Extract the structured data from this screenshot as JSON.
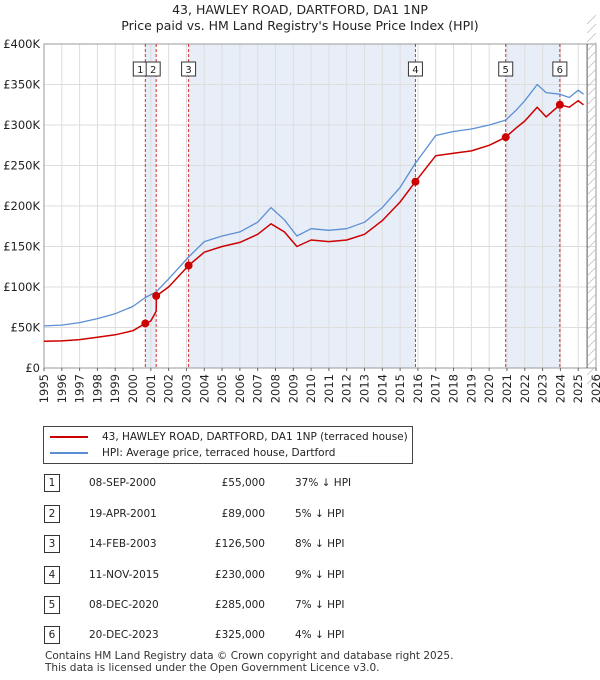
{
  "colors": {
    "property": "#cc0000",
    "hpi": "#5b8fd4",
    "shade": "#e8eef8",
    "grid": "#dddddd"
  },
  "chart_data": {
    "type": "line",
    "title": "43, HAWLEY ROAD, DARTFORD, DA1 1NP",
    "subtitle": "Price paid vs. HM Land Registry's House Price Index (HPI)",
    "xlim": [
      1995,
      2026
    ],
    "ylim": [
      0,
      400000
    ],
    "x_ticks": [
      1995,
      1996,
      1997,
      1998,
      1999,
      2000,
      2001,
      2002,
      2003,
      2004,
      2005,
      2006,
      2007,
      2008,
      2009,
      2010,
      2011,
      2012,
      2013,
      2014,
      2015,
      2016,
      2017,
      2018,
      2019,
      2020,
      2021,
      2022,
      2023,
      2024,
      2025,
      2026
    ],
    "y_ticks": [
      {
        "value": 0,
        "label": "£0"
      },
      {
        "value": 50000,
        "label": "£50K"
      },
      {
        "value": 100000,
        "label": "£100K"
      },
      {
        "value": 150000,
        "label": "£150K"
      },
      {
        "value": 200000,
        "label": "£200K"
      },
      {
        "value": 250000,
        "label": "£250K"
      },
      {
        "value": 300000,
        "label": "£300K"
      },
      {
        "value": 350000,
        "label": "£350K"
      },
      {
        "value": 400000,
        "label": "£400K"
      }
    ],
    "shaded_periods": [
      [
        2000.69,
        2001.3
      ],
      [
        2003.12,
        2015.86
      ],
      [
        2020.93,
        2023.97
      ]
    ],
    "forecast_start": 2025.5,
    "series": [
      {
        "name": "43, HAWLEY ROAD, DARTFORD, DA1 1NP (terraced house)",
        "key": "property",
        "x": [
          1995,
          1996,
          1997,
          1998,
          1999,
          2000,
          2000.69,
          2000.7,
          2001.0,
          2001.3,
          2001.31,
          2002,
          2003.12,
          2004,
          2005,
          2006,
          2007,
          2007.75,
          2008.5,
          2009.2,
          2010,
          2011,
          2012,
          2013,
          2014,
          2015,
          2015.86,
          2016.5,
          2017,
          2018,
          2019,
          2020,
          2020.93,
          2021.5,
          2022,
          2022.7,
          2023.2,
          2023.97,
          2024.5,
          2025,
          2025.3
        ],
        "values": [
          33000,
          33500,
          35000,
          38000,
          41000,
          46000,
          55000,
          55000,
          58000,
          70000,
          89000,
          100000,
          126500,
          143000,
          150000,
          155000,
          165000,
          178000,
          168000,
          150000,
          158000,
          156000,
          158000,
          165000,
          182000,
          205000,
          230000,
          248000,
          262000,
          265000,
          268000,
          275000,
          285000,
          296000,
          305000,
          322000,
          310000,
          325000,
          322000,
          330000,
          325000
        ]
      },
      {
        "name": "HPI: Average price, terraced house, Dartford",
        "key": "hpi",
        "x": [
          1995,
          1996,
          1997,
          1998,
          1999,
          2000,
          2000.69,
          2001.3,
          2002,
          2003.12,
          2004,
          2005,
          2006,
          2007,
          2007.75,
          2008.5,
          2009.2,
          2010,
          2011,
          2012,
          2013,
          2014,
          2015,
          2015.86,
          2016.5,
          2017,
          2018,
          2019,
          2020,
          2020.93,
          2021.5,
          2022,
          2022.7,
          2023.2,
          2023.97,
          2024.5,
          2025,
          2025.3
        ],
        "values": [
          52000,
          53000,
          56000,
          61000,
          67000,
          76000,
          87000,
          94000,
          110000,
          137000,
          156000,
          163000,
          168000,
          180000,
          198000,
          183000,
          163000,
          172000,
          170000,
          172000,
          180000,
          198000,
          223000,
          253000,
          272000,
          287000,
          292000,
          295000,
          300000,
          306000,
          318000,
          330000,
          350000,
          340000,
          338000,
          334000,
          343000,
          338000
        ]
      }
    ],
    "markers": [
      {
        "label": "1",
        "x": 2000.69,
        "y": 55000
      },
      {
        "label": "2",
        "x": 2001.3,
        "y": 89000
      },
      {
        "label": "3",
        "x": 2003.12,
        "y": 126500
      },
      {
        "label": "4",
        "x": 2015.86,
        "y": 230000
      },
      {
        "label": "5",
        "x": 2020.93,
        "y": 285000
      },
      {
        "label": "6",
        "x": 2023.97,
        "y": 325000
      }
    ]
  },
  "legend": {
    "property_label": "43, HAWLEY ROAD, DARTFORD, DA1 1NP (terraced house)",
    "hpi_label": "HPI: Average price, terraced house, Dartford"
  },
  "transactions": [
    {
      "num": "1",
      "date": "08-SEP-2000",
      "price": "£55,000",
      "hpi": "37% ↓ HPI"
    },
    {
      "num": "2",
      "date": "19-APR-2001",
      "price": "£89,000",
      "hpi": "5% ↓ HPI"
    },
    {
      "num": "3",
      "date": "14-FEB-2003",
      "price": "£126,500",
      "hpi": "8% ↓ HPI"
    },
    {
      "num": "4",
      "date": "11-NOV-2015",
      "price": "£230,000",
      "hpi": "9% ↓ HPI"
    },
    {
      "num": "5",
      "date": "08-DEC-2020",
      "price": "£285,000",
      "hpi": "7% ↓ HPI"
    },
    {
      "num": "6",
      "date": "20-DEC-2023",
      "price": "£325,000",
      "hpi": "4% ↓ HPI"
    }
  ],
  "footer": {
    "line1": "Contains HM Land Registry data © Crown copyright and database right 2025.",
    "line2": "This data is licensed under the Open Government Licence v3.0."
  }
}
